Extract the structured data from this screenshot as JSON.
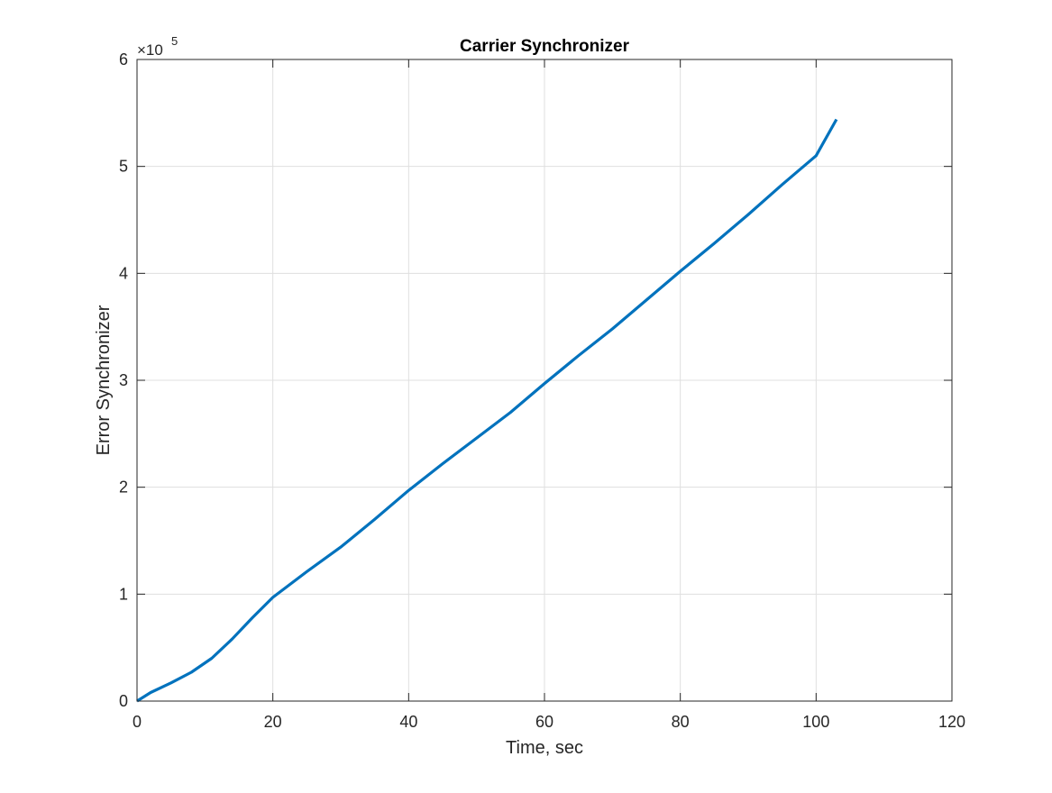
{
  "figure": {
    "background": "#ffffff"
  },
  "chart_data": {
    "type": "line",
    "title": "Carrier Synchronizer",
    "xlabel": "Time, sec",
    "ylabel": "Error Synchronizer",
    "xlim": [
      0,
      120
    ],
    "ylim": [
      0,
      6
    ],
    "y_exponent_label": "×10",
    "y_exponent_power": "5",
    "xticks": [
      "0",
      "20",
      "40",
      "60",
      "80",
      "100",
      "120"
    ],
    "yticks": [
      "0",
      "1",
      "2",
      "3",
      "4",
      "5",
      "6"
    ],
    "xtick_values": [
      0,
      20,
      40,
      60,
      80,
      100,
      120
    ],
    "ytick_values": [
      0,
      1,
      2,
      3,
      4,
      5,
      6
    ],
    "grid": true,
    "legend": "none",
    "series": [
      {
        "color": "#0072bd",
        "x": [
          0,
          2,
          5,
          8,
          11,
          14,
          17,
          20,
          25,
          30,
          35,
          40,
          45,
          50,
          55,
          60,
          65,
          70,
          75,
          80,
          85,
          90,
          95,
          100,
          103
        ],
        "y": [
          0.0,
          0.08,
          0.17,
          0.27,
          0.4,
          0.58,
          0.78,
          0.97,
          1.21,
          1.44,
          1.7,
          1.97,
          2.22,
          2.46,
          2.7,
          2.97,
          3.23,
          3.48,
          3.75,
          4.02,
          4.28,
          4.55,
          4.83,
          5.1,
          5.44
        ]
      }
    ]
  }
}
